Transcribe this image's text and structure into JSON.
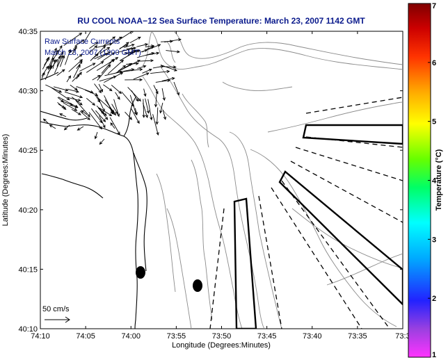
{
  "title": "RU COOL  NOAA−12  Sea Surface Temperature:  March 23, 2007 1142 GMT",
  "annotation": {
    "line1": "Raw Surface Currents",
    "line2": "March 23, 2007 (1200 GMT)"
  },
  "scale_label": "50 cm/s",
  "x_axis": {
    "label": "Longitude (Degrees:Minutes)",
    "ticks": [
      "74:10",
      "74:05",
      "74:00",
      "73:55",
      "73:50",
      "73:45",
      "73:40",
      "73:35",
      "73:3"
    ]
  },
  "y_axis": {
    "label": "Latitude (Degrees:Minutes)",
    "ticks": [
      "40:35",
      "40:30",
      "40:25",
      "40:20",
      "40:15",
      "40:10"
    ]
  },
  "colorbar": {
    "label": "Temperature (°C)",
    "ticks": [
      "7",
      "6",
      "5",
      "4",
      "3",
      "2",
      "1"
    ],
    "min": 1,
    "max": 7,
    "colors": [
      "#ff33ff",
      "#9a40e0",
      "#2222ff",
      "#00aaff",
      "#00ffff",
      "#00ff66",
      "#66ff00",
      "#ffff00",
      "#ffaa00",
      "#ff3300",
      "#cc0000",
      "#800000"
    ]
  },
  "colors": {
    "title": "#0a1a8c",
    "coast": "#000000",
    "contour": "#8a8a8a",
    "vector": "#000000"
  },
  "icons": {
    "arrow": "current-vector-icon",
    "marker": "station-marker-icon"
  }
}
